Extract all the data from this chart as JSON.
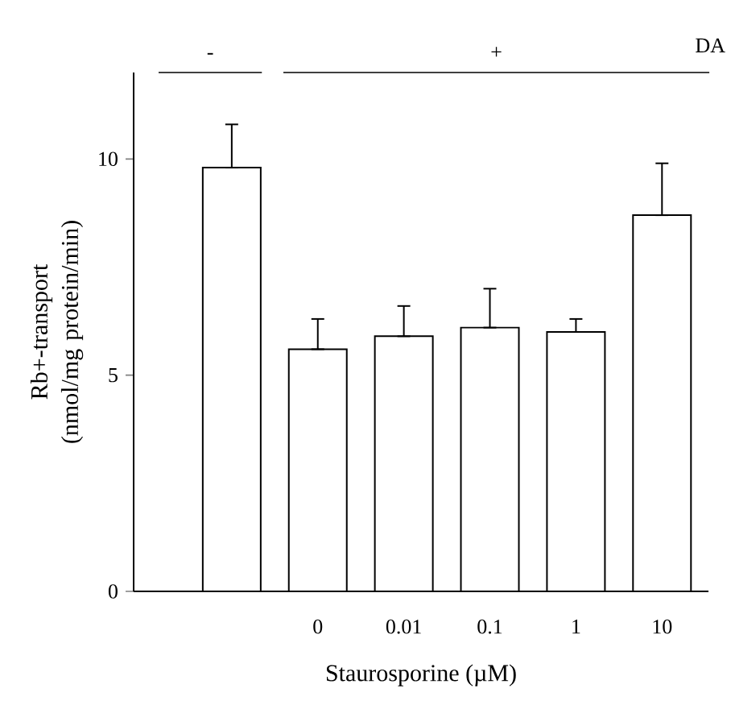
{
  "chart_data": {
    "type": "bar",
    "ylabel": "Rb+-transport (nmol/mg protein/min)",
    "xlabel": "Staurosporine (µM)",
    "categories": [
      null,
      "0",
      "0.01",
      "0.1",
      "1",
      "10"
    ],
    "values": [
      9.8,
      5.6,
      5.9,
      6.1,
      6.0,
      8.7
    ],
    "errors": [
      [
        9.8,
        10.8
      ],
      [
        5.6,
        6.3
      ],
      [
        5.9,
        6.6
      ],
      [
        6.1,
        7.0
      ],
      [
        6.0,
        6.3
      ],
      [
        8.7,
        9.9
      ]
    ],
    "color": "#ffffff",
    "ylim": [
      0,
      12
    ],
    "yticks": [
      0,
      5,
      10
    ],
    "annotations": [
      "-",
      "+",
      "DA"
    ]
  }
}
